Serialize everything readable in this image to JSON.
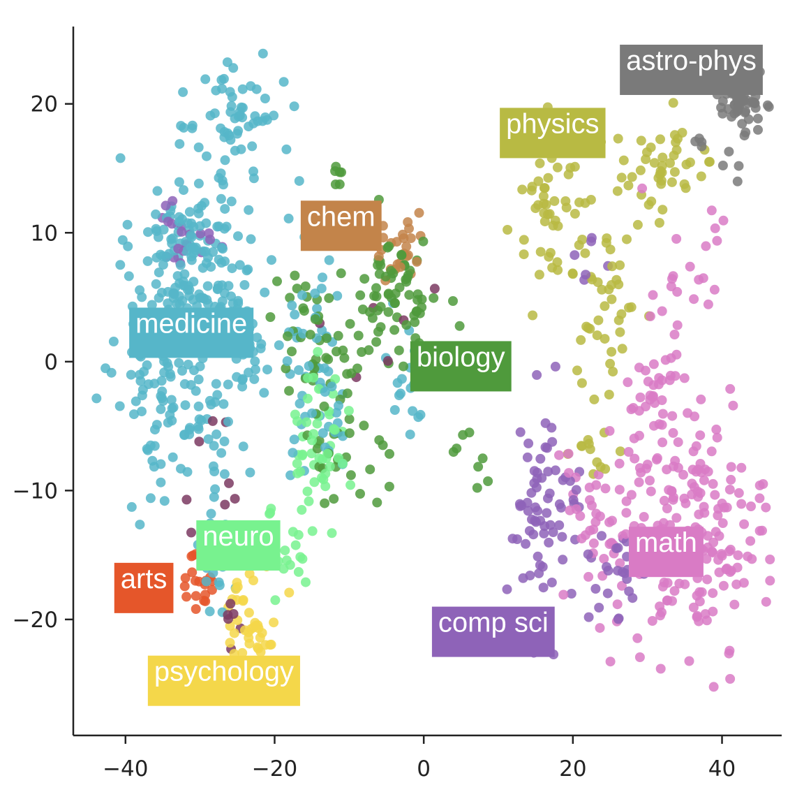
{
  "chart_data": {
    "type": "scatter",
    "title": "",
    "xlabel": "",
    "ylabel": "",
    "xlim": [
      -47,
      48
    ],
    "ylim": [
      -29,
      26
    ],
    "xticks": [
      -40,
      -20,
      0,
      20,
      40
    ],
    "yticks": [
      -20,
      -10,
      0,
      10,
      20
    ],
    "xtick_labels": [
      "−40",
      "−20",
      "0",
      "20",
      "40"
    ],
    "ytick_labels": [
      "−20",
      "−10",
      "0",
      "10",
      "20"
    ],
    "grid": false,
    "clusters": [
      {
        "label": "medicine",
        "color": "#56b6c9",
        "label_pos": [
          -39.5,
          3
        ],
        "blobs": [
          {
            "cx": -31,
            "cy": 8,
            "sx": 4,
            "sy": 4,
            "n": 160
          },
          {
            "cx": -34,
            "cy": -1,
            "sx": 3.5,
            "sy": 4.5,
            "n": 110
          },
          {
            "cx": -25,
            "cy": 19,
            "sx": 3,
            "sy": 2.5,
            "n": 55
          },
          {
            "cx": -25,
            "cy": 0,
            "sx": 3,
            "sy": 4,
            "n": 50
          },
          {
            "cx": -14,
            "cy": 0,
            "sx": 2.5,
            "sy": 5,
            "n": 55
          },
          {
            "cx": -28,
            "cy": -14,
            "sx": 2.5,
            "sy": 3,
            "n": 35
          },
          {
            "cx": -2,
            "cy": -1,
            "sx": 1.5,
            "sy": 2.5,
            "n": 18
          }
        ]
      },
      {
        "label": "biology",
        "color": "#4f9a3c",
        "label_pos": [
          -1.8,
          0.4
        ],
        "blobs": [
          {
            "cx": -4,
            "cy": 5,
            "sx": 3,
            "sy": 2.5,
            "n": 70
          },
          {
            "cx": -15,
            "cy": 2.5,
            "sx": 3,
            "sy": 2.5,
            "n": 35
          },
          {
            "cx": -11,
            "cy": -5,
            "sx": 3,
            "sy": 3,
            "n": 35
          },
          {
            "cx": 6,
            "cy": -7,
            "sx": 1.5,
            "sy": 1.5,
            "n": 8
          },
          {
            "cx": -11.5,
            "cy": 14.5,
            "sx": 0.5,
            "sy": 0.4,
            "n": 6
          }
        ]
      },
      {
        "label": "chem",
        "color": "#c3844a",
        "label_pos": [
          -16.5,
          11.3
        ],
        "blobs": [
          {
            "cx": -3,
            "cy": 8,
            "sx": 1.7,
            "sy": 1.4,
            "n": 25
          }
        ]
      },
      {
        "label": "neuro",
        "color": "#78f28f",
        "label_pos": [
          -30.5,
          -13.5
        ],
        "blobs": [
          {
            "cx": -14,
            "cy": -6,
            "sx": 1.8,
            "sy": 3,
            "n": 50
          },
          {
            "cx": -18,
            "cy": -14,
            "sx": 2,
            "sy": 2.5,
            "n": 20
          }
        ]
      },
      {
        "label": "arts",
        "color": "#e5562a",
        "label_pos": [
          -41.5,
          -16.8
        ],
        "blobs": [
          {
            "cx": -30,
            "cy": -17,
            "sx": 1,
            "sy": 1.2,
            "n": 22
          }
        ]
      },
      {
        "label": "psychology",
        "color": "#f4d74a",
        "label_pos": [
          -37,
          -24
        ],
        "blobs": [
          {
            "cx": -23,
            "cy": -20,
            "sx": 2.2,
            "sy": 2,
            "n": 40
          }
        ]
      },
      {
        "label": "physics",
        "color": "#b8ba43",
        "label_pos": [
          10.2,
          18.5
        ],
        "blobs": [
          {
            "cx": 17,
            "cy": 12,
            "sx": 2.5,
            "sy": 3,
            "n": 50
          },
          {
            "cx": 32,
            "cy": 15,
            "sx": 4,
            "sy": 1.8,
            "n": 45
          },
          {
            "cx": 25,
            "cy": 4,
            "sx": 2,
            "sy": 3.5,
            "n": 40
          },
          {
            "cx": 23,
            "cy": -7,
            "sx": 2,
            "sy": 1.5,
            "n": 12
          }
        ]
      },
      {
        "label": "astro-phys",
        "color": "#7a7a7a",
        "label_pos": [
          26.3,
          23.4
        ],
        "blobs": [
          {
            "cx": 42.5,
            "cy": 20.5,
            "sx": 1.3,
            "sy": 1.1,
            "n": 70
          },
          {
            "cx": 38,
            "cy": 16,
            "sx": 2,
            "sy": 2,
            "n": 10
          }
        ]
      },
      {
        "label": "math",
        "color": "#d97bc5",
        "label_pos": [
          27.5,
          -14
        ],
        "blobs": [
          {
            "cx": 36,
            "cy": -13,
            "sx": 5,
            "sy": 4.5,
            "n": 200
          },
          {
            "cx": 31,
            "cy": -3,
            "sx": 2,
            "sy": 3.5,
            "n": 40
          },
          {
            "cx": 23,
            "cy": -12,
            "sx": 2.5,
            "sy": 3,
            "n": 35
          },
          {
            "cx": 36,
            "cy": 7,
            "sx": 4,
            "sy": 3,
            "n": 18
          }
        ]
      },
      {
        "label": "comp sci",
        "color": "#8e63b8",
        "label_pos": [
          1.1,
          -20.2
        ],
        "blobs": [
          {
            "cx": 16,
            "cy": -12,
            "sx": 2.5,
            "sy": 3.5,
            "n": 70
          },
          {
            "cx": 26,
            "cy": -17,
            "sx": 2,
            "sy": 2,
            "n": 25
          },
          {
            "cx": -32,
            "cy": 10,
            "sx": 2.5,
            "sy": 1.5,
            "n": 20
          },
          {
            "cx": 21,
            "cy": 8,
            "sx": 1.5,
            "sy": 1.5,
            "n": 6
          }
        ]
      },
      {
        "label": "",
        "color": "#7b3a62",
        "label_pos": null,
        "blobs": [
          {
            "cx": -27,
            "cy": -8,
            "sx": 3,
            "sy": 2.5,
            "n": 8
          },
          {
            "cx": -26,
            "cy": -20,
            "sx": 2,
            "sy": 1,
            "n": 6
          },
          {
            "cx": -6,
            "cy": 3,
            "sx": 5,
            "sy": 2,
            "n": 6
          }
        ]
      }
    ]
  }
}
